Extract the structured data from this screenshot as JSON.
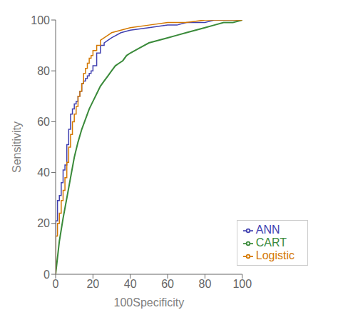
{
  "chart_data": {
    "type": "line",
    "xlabel": "100Specificity",
    "ylabel": "Sensitivity",
    "xlim": [
      0,
      100
    ],
    "ylim": [
      0,
      100
    ],
    "xticks": [
      0,
      20,
      40,
      60,
      80,
      100
    ],
    "yticks": [
      0,
      20,
      40,
      60,
      80,
      100
    ],
    "grid": false,
    "legend": "lower right",
    "series": [
      {
        "name": "ANN",
        "color": "#4040b0",
        "x": [
          0,
          0,
          1,
          1,
          2,
          2,
          3,
          3,
          4,
          4,
          5,
          5,
          6,
          6,
          7,
          7,
          8,
          8,
          9,
          9,
          10,
          10,
          11,
          11,
          12,
          12,
          13,
          13,
          14,
          14,
          15,
          15,
          16,
          16,
          17,
          17,
          18,
          18,
          19,
          19,
          20,
          20,
          22,
          22,
          24,
          24,
          26,
          26,
          28,
          30,
          35,
          40,
          50,
          60,
          65,
          70,
          75,
          80,
          85,
          90,
          95,
          100
        ],
        "values": [
          0,
          21,
          21,
          29,
          29,
          31,
          31,
          36,
          36,
          41,
          41,
          43,
          43,
          51,
          51,
          57,
          57,
          63,
          63,
          65,
          65,
          67,
          67,
          68,
          68,
          70,
          70,
          72,
          72,
          75,
          75,
          76,
          76,
          77,
          77,
          78,
          78,
          79,
          79,
          80,
          80,
          82,
          82,
          87,
          87,
          90,
          90,
          91,
          92,
          93,
          95,
          96,
          97,
          98,
          98,
          99,
          99,
          99,
          100,
          100,
          100,
          100
        ]
      },
      {
        "name": "CART",
        "color": "#3a8a3a",
        "x": [
          0,
          2,
          4,
          6,
          8,
          10,
          12,
          14,
          16,
          18,
          20,
          22,
          24,
          26,
          28,
          30,
          32,
          34,
          36,
          38,
          40,
          45,
          50,
          55,
          60,
          65,
          70,
          75,
          80,
          85,
          90,
          95,
          100
        ],
        "values": [
          0,
          13,
          22,
          30,
          38,
          46,
          52,
          57,
          61,
          65,
          68,
          71,
          74,
          76,
          78,
          80,
          82,
          83,
          84,
          86,
          87,
          89,
          91,
          92,
          93,
          94,
          95,
          96,
          97,
          98,
          99,
          99,
          100
        ]
      },
      {
        "name": "Logistic",
        "color": "#d47800",
        "x": [
          0,
          0,
          1,
          1,
          2,
          2,
          3,
          3,
          4,
          4,
          5,
          5,
          6,
          6,
          7,
          7,
          8,
          8,
          9,
          9,
          10,
          10,
          11,
          11,
          12,
          12,
          13,
          13,
          14,
          14,
          15,
          15,
          16,
          16,
          17,
          17,
          18,
          18,
          19,
          19,
          20,
          20,
          22,
          22,
          24,
          24,
          26,
          28,
          30,
          35,
          40,
          50,
          60,
          70,
          80,
          90,
          100
        ],
        "values": [
          0,
          15,
          15,
          20,
          20,
          24,
          24,
          29,
          29,
          33,
          33,
          38,
          38,
          44,
          44,
          50,
          50,
          55,
          55,
          60,
          60,
          63,
          63,
          66,
          66,
          70,
          70,
          72,
          72,
          75,
          75,
          79,
          79,
          81,
          81,
          83,
          83,
          85,
          85,
          86,
          86,
          88,
          88,
          90,
          90,
          92,
          93,
          94,
          95,
          96,
          97,
          98,
          99,
          99,
          100,
          100,
          100
        ]
      }
    ]
  }
}
